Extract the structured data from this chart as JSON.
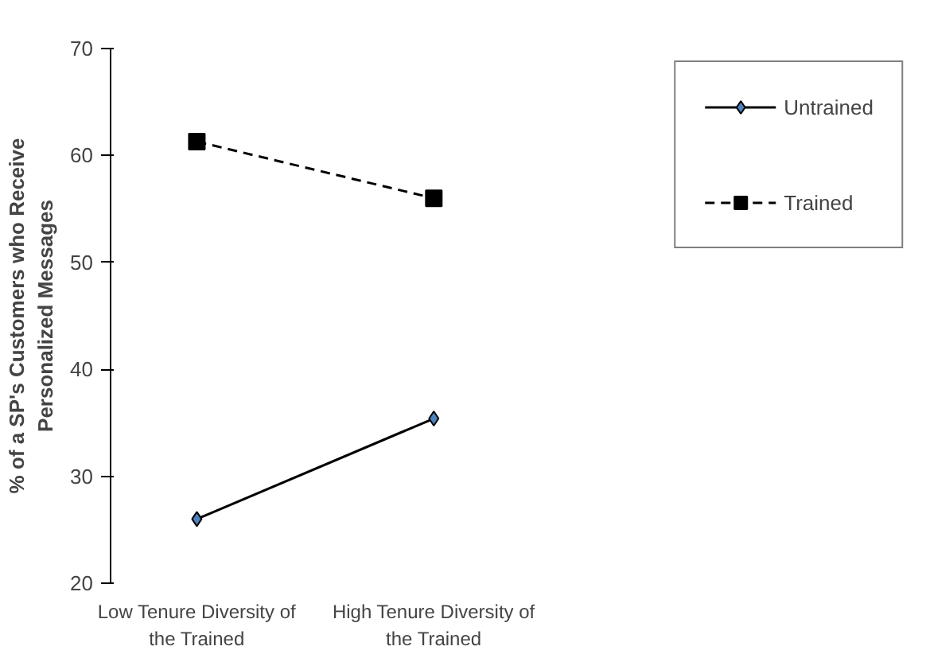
{
  "chart_data": {
    "type": "line",
    "ylabel": "% of a SP's Customers who Receive\nPersonalized Messages",
    "categories": [
      "Low Tenure Diversity of\nthe Trained",
      "High Tenure Diversity of\nthe Trained"
    ],
    "series": [
      {
        "name": "Untrained",
        "color": "#000000",
        "values": [
          26.0,
          35.4
        ],
        "marker": "diamond",
        "line_style": "solid"
      },
      {
        "name": "Trained",
        "color": "#000000",
        "values": [
          61.3,
          56.0
        ],
        "marker": "square",
        "line_style": "dashed"
      }
    ],
    "ylim": [
      20,
      70
    ],
    "yticks": [
      20,
      30,
      40,
      50,
      60,
      70
    ],
    "grid": false,
    "legend": "right"
  }
}
